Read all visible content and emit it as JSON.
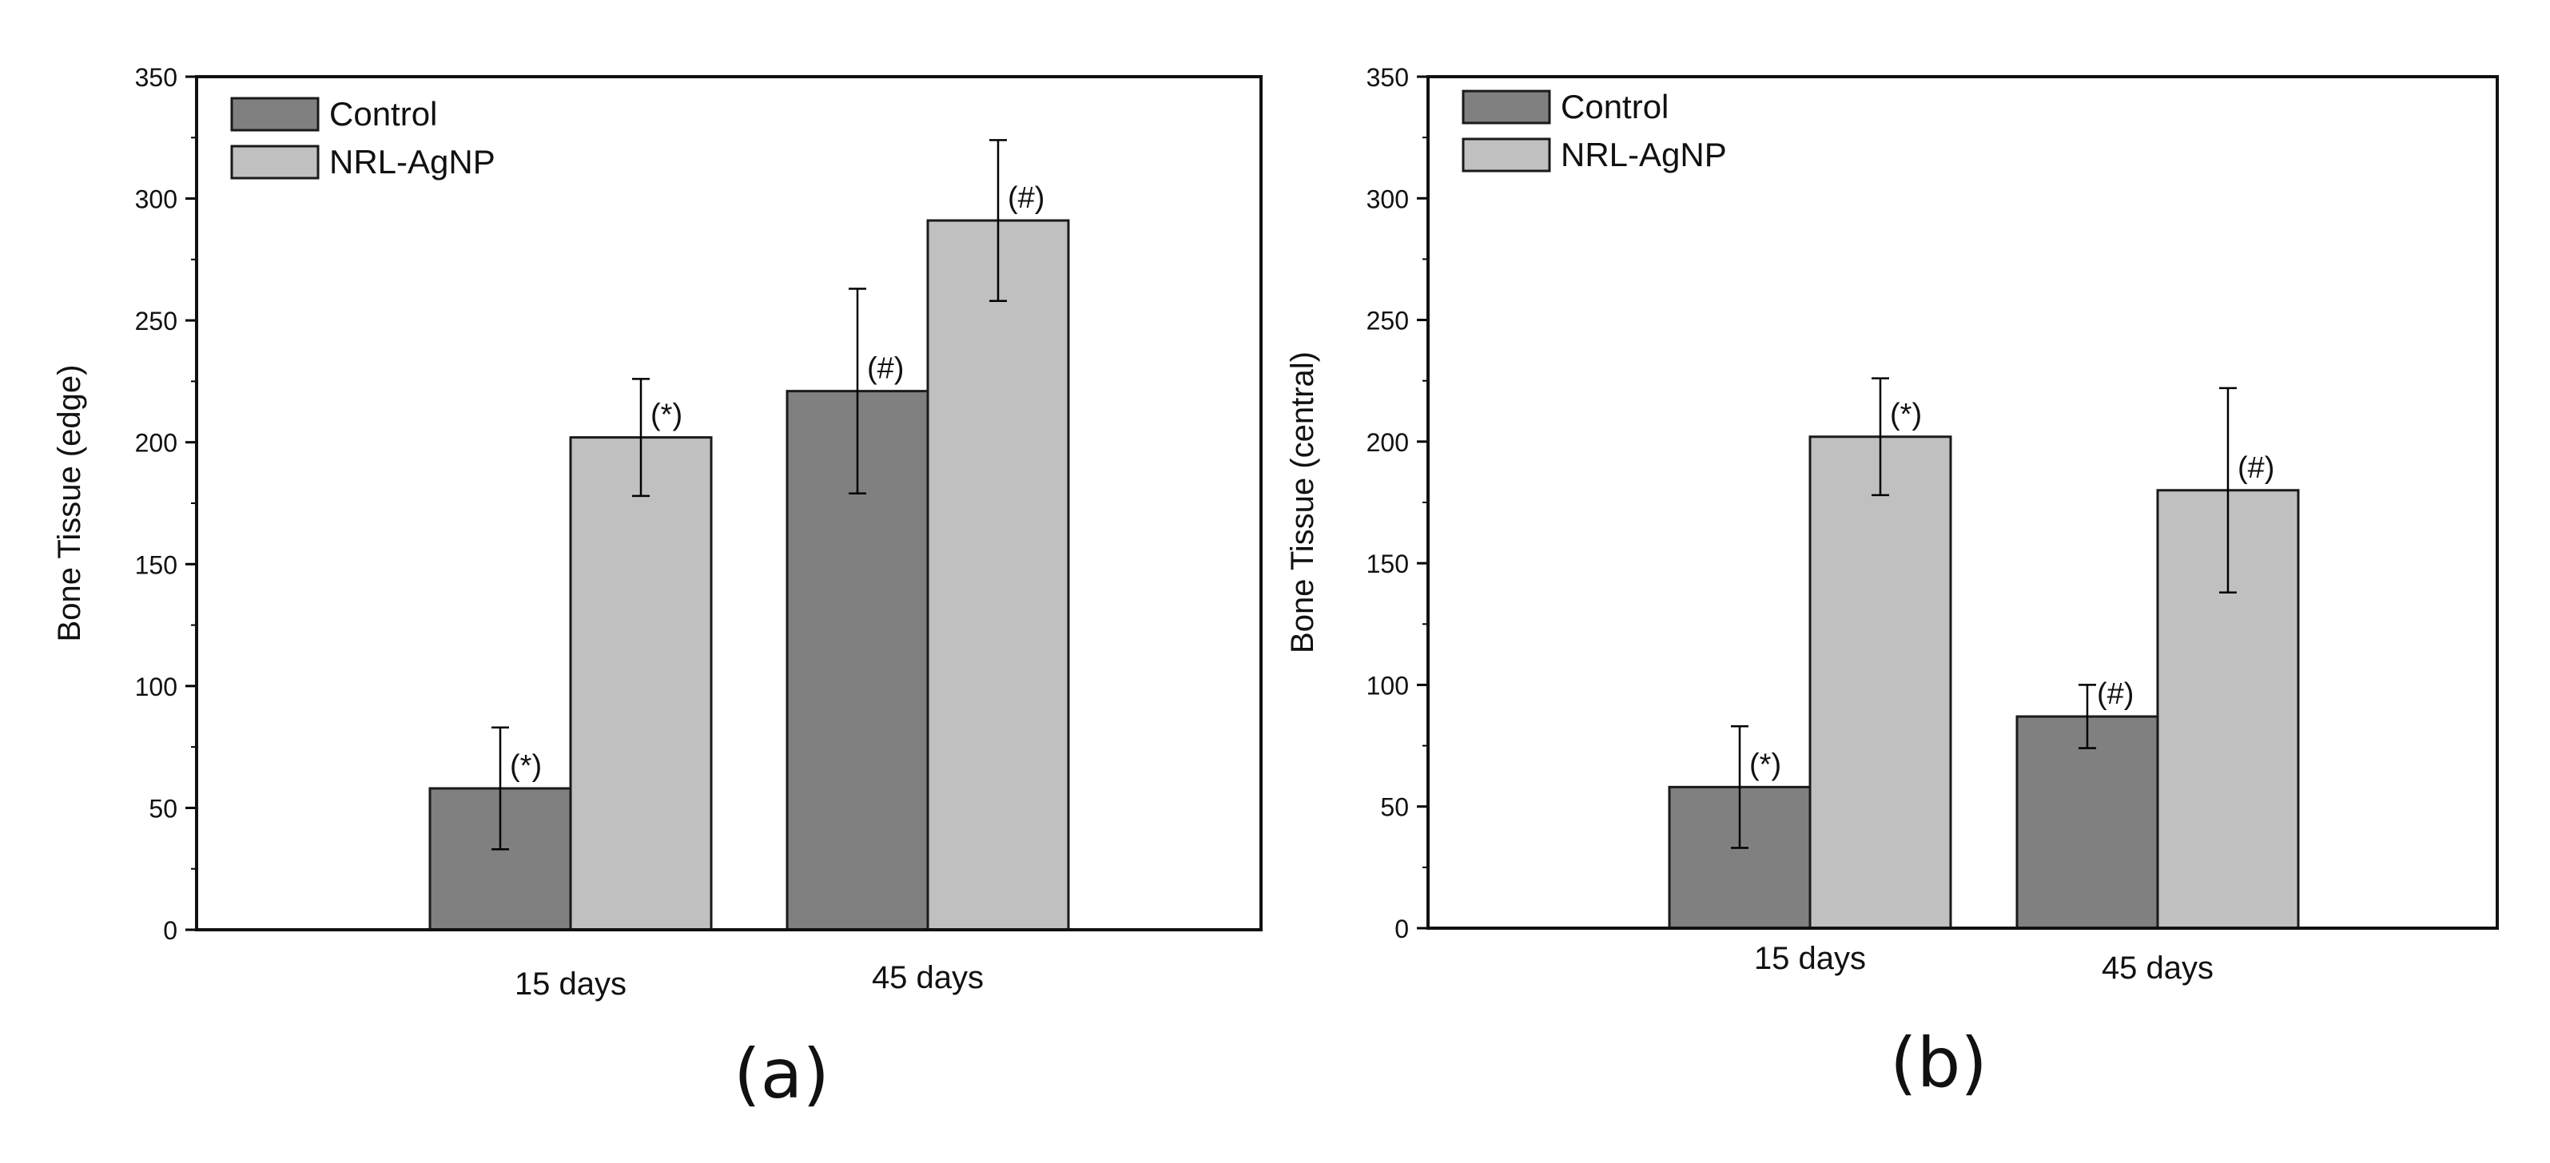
{
  "chart_data": [
    {
      "type": "bar",
      "panel_label": "(a)",
      "title": "",
      "xlabel": "",
      "ylabel": "Bone Tissue (edge)",
      "ylim": [
        0,
        350
      ],
      "yticks": [
        0,
        50,
        100,
        150,
        200,
        250,
        300,
        350
      ],
      "grid": false,
      "legend_position": "top-left",
      "categories": [
        "15 days",
        "45 days"
      ],
      "series": [
        {
          "name": "Control",
          "color": "#808080",
          "values": [
            58,
            221
          ],
          "errors": [
            25,
            42
          ],
          "annotations": [
            "(*)",
            "(#)"
          ]
        },
        {
          "name": "NRL-AgNP",
          "color": "#c0c0c0",
          "values": [
            202,
            291
          ],
          "errors": [
            24,
            33
          ],
          "annotations": [
            "(*)",
            "(#)"
          ]
        }
      ]
    },
    {
      "type": "bar",
      "panel_label": "(b)",
      "title": "",
      "xlabel": "",
      "ylabel": "Bone Tissue (central)",
      "ylim": [
        0,
        350
      ],
      "yticks": [
        0,
        50,
        100,
        150,
        200,
        250,
        300,
        350
      ],
      "grid": false,
      "legend_position": "top-left",
      "categories": [
        "15 days",
        "45 days"
      ],
      "series": [
        {
          "name": "Control",
          "color": "#808080",
          "values": [
            58,
            87
          ],
          "errors": [
            25,
            13
          ],
          "annotations": [
            "(*)",
            "(#)"
          ]
        },
        {
          "name": "NRL-AgNP",
          "color": "#c0c0c0",
          "values": [
            202,
            180
          ],
          "errors": [
            24,
            42
          ],
          "annotations": [
            "(*)",
            "(#)"
          ]
        }
      ]
    }
  ]
}
